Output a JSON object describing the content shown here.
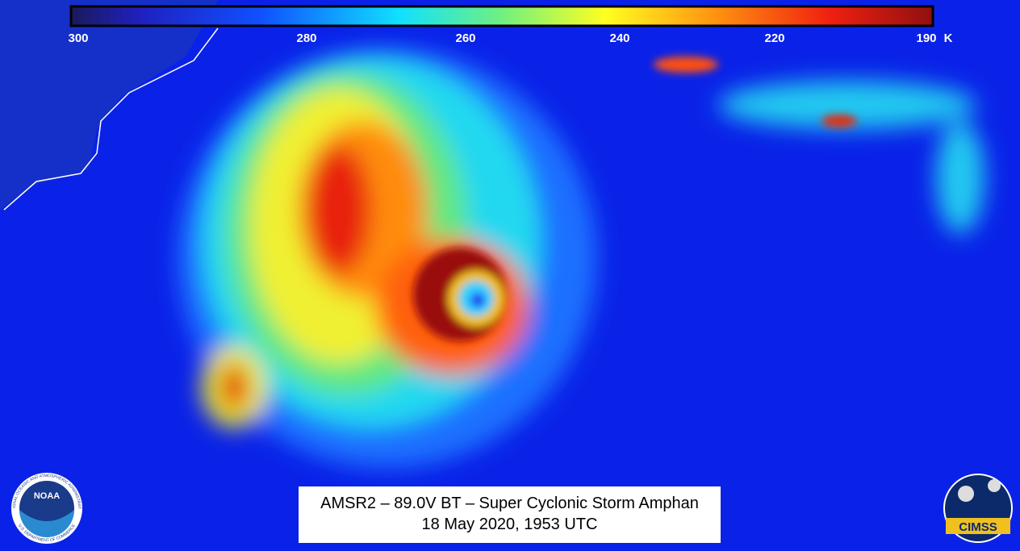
{
  "colorbar": {
    "ticks": [
      300,
      280,
      260,
      240,
      220,
      190
    ],
    "unit": "K"
  },
  "caption": {
    "line1": "AMSR2 – 89.0V BT – Super Cyclonic Storm Amphan",
    "line2": "18 May 2020, 1953 UTC"
  },
  "logos": {
    "noaa": "NOAA",
    "noaa_ring_top": "NATIONAL OCEANIC AND ATMOSPHERIC ADMINISTRATION",
    "noaa_ring_bottom": "U.S. DEPARTMENT OF COMMERCE",
    "cimss": "CIMSS"
  }
}
